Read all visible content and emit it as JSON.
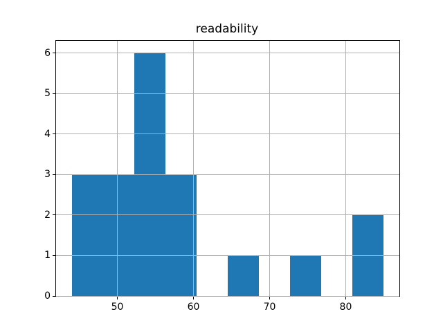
{
  "figure": {
    "background": "#ffffff"
  },
  "chart_data": {
    "type": "bar",
    "subtype": "histogram",
    "title": "readability",
    "xlabel": "",
    "ylabel": "",
    "bin_edges": [
      44.0,
      48.1,
      52.2,
      56.3,
      60.4,
      64.5,
      68.6,
      72.7,
      76.8,
      80.9,
      85.0
    ],
    "counts": [
      3,
      3,
      6,
      3,
      0,
      1,
      0,
      1,
      0,
      2
    ],
    "x_ticks": [
      50,
      60,
      70,
      80
    ],
    "y_ticks": [
      0,
      1,
      2,
      3,
      4,
      5,
      6
    ],
    "xlim": [
      41.95,
      87.05
    ],
    "ylim": [
      0,
      6.3
    ],
    "grid": true,
    "grid_over_bars": true,
    "legend": false,
    "bar_color": "#1f77b4",
    "grid_color": "#b0b0b0",
    "axis_color": "#000000",
    "text_color": "#000000"
  }
}
